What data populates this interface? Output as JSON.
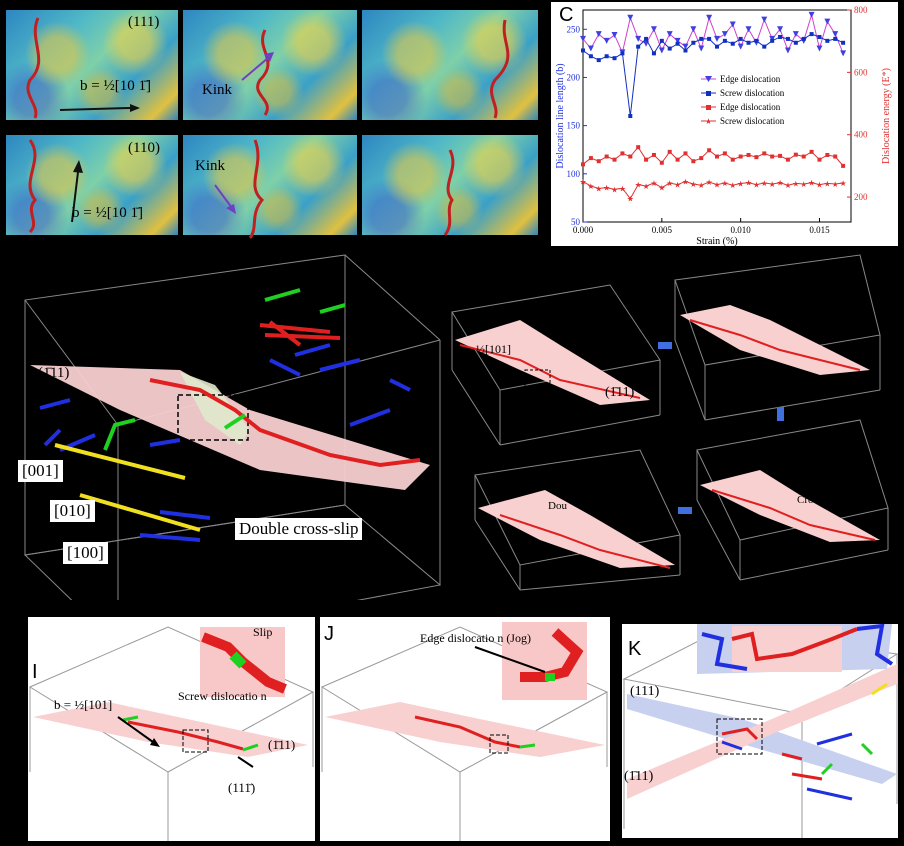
{
  "top_left": {
    "plane_top": "(111)",
    "plane_bottom": "(110)",
    "burgers_top": "b = ½[10 1̄]",
    "burgers_bottom": "b = ½[10 1̄]",
    "kink_top": "Kink",
    "kink_bottom": "Kink"
  },
  "panel_c": {
    "letter": "C",
    "xlabel": "Strain (%)",
    "ylabel_left": "Dislocation line length (b)",
    "ylabel_right": "Dislocation energy (E*)"
  },
  "chart_data": {
    "type": "line",
    "x_ticks": [
      "0.000",
      "0.005",
      "0.010",
      "0.015"
    ],
    "y_left_ticks": [
      "50",
      "100",
      "150",
      "200",
      "250"
    ],
    "y_right_ticks": [
      "200",
      "400",
      "600",
      "800"
    ],
    "xlim": [
      0,
      0.017
    ],
    "ylim_left": [
      50,
      270
    ],
    "ylim_right": [
      120,
      800
    ],
    "x": [
      0.0,
      0.0005,
      0.001,
      0.0015,
      0.002,
      0.0025,
      0.003,
      0.0035,
      0.004,
      0.0045,
      0.005,
      0.0055,
      0.006,
      0.0065,
      0.007,
      0.0075,
      0.008,
      0.0085,
      0.009,
      0.0095,
      0.01,
      0.0105,
      0.011,
      0.0115,
      0.012,
      0.0125,
      0.013,
      0.0135,
      0.014,
      0.0145,
      0.015,
      0.0155,
      0.016,
      0.0165
    ],
    "series": [
      {
        "name": "Edge dislocation",
        "axis": "left",
        "color": "#4040e0",
        "marker": "triangle-down",
        "values": [
          240,
          230,
          245,
          238,
          244,
          226,
          262,
          240,
          235,
          250,
          228,
          245,
          238,
          232,
          250,
          230,
          262,
          240,
          245,
          255,
          232,
          250,
          236,
          260,
          240,
          250,
          228,
          245,
          238,
          265,
          230,
          258,
          245,
          225
        ]
      },
      {
        "name": "Screw dislocation",
        "axis": "left",
        "color": "#1030c0",
        "marker": "square",
        "values": [
          228,
          222,
          218,
          222,
          220,
          225,
          160,
          232,
          240,
          225,
          238,
          230,
          235,
          228,
          236,
          240,
          240,
          232,
          238,
          235,
          240,
          236,
          238,
          232,
          238,
          242,
          240,
          236,
          240,
          245,
          242,
          238,
          240,
          236
        ]
      },
      {
        "name": "Edge dislocation",
        "axis": "right",
        "color": "#e03030",
        "marker": "square",
        "values": [
          305,
          325,
          315,
          330,
          320,
          340,
          330,
          360,
          320,
          335,
          310,
          345,
          320,
          340,
          315,
          325,
          350,
          330,
          340,
          320,
          330,
          335,
          328,
          340,
          330,
          332,
          320,
          336,
          330,
          345,
          320,
          335,
          330,
          300
        ]
      },
      {
        "name": "Screw dislocation",
        "axis": "right",
        "color": "#e03030",
        "marker": "star",
        "values": [
          250,
          235,
          228,
          230,
          225,
          228,
          195,
          240,
          235,
          245,
          230,
          245,
          240,
          250,
          242,
          238,
          248,
          240,
          245,
          238,
          244,
          246,
          240,
          245,
          242,
          246,
          238,
          244,
          242,
          246,
          240,
          244,
          242,
          245
        ]
      }
    ]
  },
  "middle_left": {
    "plane": "(1̄11)",
    "dir1": "[001]",
    "dir2": "[010]",
    "dir3": "[100]",
    "caption": "Double cross-slip"
  },
  "middle_right": {
    "burgers": "½[101]",
    "plane": "(1̄11)",
    "label_double": "Dou",
    "label_cross": "Cross"
  },
  "panel_i": {
    "letter": "I",
    "slip": "Slip",
    "screw": "Screw dislocatio n",
    "burgers": "b = ½[101]",
    "plane1": "(1̄11)",
    "plane2": "(111̄)"
  },
  "panel_j": {
    "letter": "J",
    "edge": "Edge dislocatio n (Jog)"
  },
  "panel_k": {
    "letter": "K",
    "plane1": "(111)",
    "plane2": "(1̄11)"
  },
  "colors": {
    "screw": "#e02020",
    "edge": "#2030e0",
    "mixed": "#20d020",
    "yellow": "#f0e020",
    "plane_pink": "#f8d0d0",
    "plane_blue": "#c8d0f0"
  }
}
